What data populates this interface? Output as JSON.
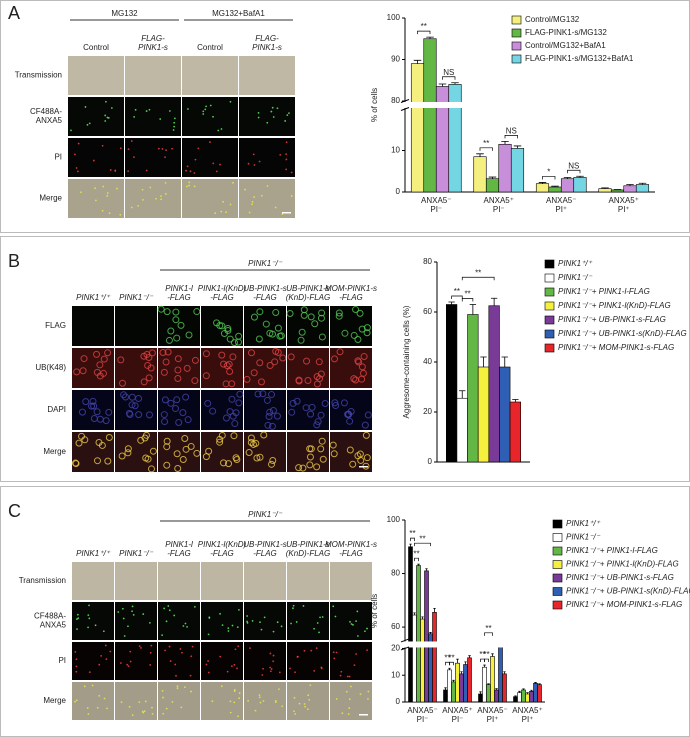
{
  "panels": [
    {
      "label": "A",
      "group_headers": [
        {
          "text": "MG132",
          "columns": [
            0,
            1
          ]
        },
        {
          "text": "MG132+BafA1",
          "columns": [
            2,
            3
          ]
        }
      ],
      "columns": [
        [
          "Control"
        ],
        [
          "FLAG-",
          "PINK1-s"
        ],
        [
          "Control"
        ],
        [
          "FLAG-",
          "PINK1-s"
        ]
      ],
      "rows": [
        [
          "Transmission"
        ],
        [
          "CF488A-",
          "ANXA5"
        ],
        [
          "PI"
        ],
        [
          "Merge"
        ]
      ]
    },
    {
      "label": "B",
      "group_headers": [
        {
          "text": "PINK1⁻/⁻",
          "columns": [
            2,
            6
          ]
        }
      ],
      "columns": [
        [
          "PINK1⁺/⁺"
        ],
        [
          "PINK1⁻/⁻"
        ],
        [
          "PINK1-l",
          "-FLAG"
        ],
        [
          "PINK1-l(KnD)",
          "-FLAG"
        ],
        [
          "UB-PINK1-s",
          "-FLAG"
        ],
        [
          "UB-PINK1-s",
          "(KnD)-FLAG"
        ],
        [
          "MOM-PINK1-s",
          "-FLAG"
        ]
      ],
      "rows": [
        [
          "FLAG"
        ],
        [
          "UB(K48)"
        ],
        [
          "DAPI"
        ],
        [
          "Merge"
        ]
      ]
    },
    {
      "label": "C",
      "group_headers": [
        {
          "text": "PINK1⁻/⁻",
          "columns": [
            2,
            6
          ]
        }
      ],
      "columns": [
        [
          "PINK1⁺/⁺"
        ],
        [
          "PINK1⁻/⁻"
        ],
        [
          "PINK1-l",
          "-FLAG"
        ],
        [
          "PINK1-l(KnD)",
          "-FLAG"
        ],
        [
          "UB-PINK1-s",
          "-FLAG"
        ],
        [
          "UB-PINK1-s",
          "(KnD)-FLAG"
        ],
        [
          "MOM-PINK1-s",
          "-FLAG"
        ]
      ],
      "rows": [
        [
          "Transmission"
        ],
        [
          "CF488A-",
          "ANXA5"
        ],
        [
          "PI"
        ],
        [
          "Merge"
        ]
      ]
    }
  ],
  "chart_data": [
    {
      "type": "bar",
      "y_label": "% of cells",
      "categories": [
        [
          "ANXA5⁻",
          "PI⁻"
        ],
        [
          "ANXA5⁺",
          "PI⁻"
        ],
        [
          "ANXA5⁻",
          "PI⁺"
        ],
        [
          "ANXA5⁺",
          "PI⁺"
        ]
      ],
      "ylim": [
        0,
        100
      ],
      "y_break": [
        20,
        80
      ],
      "yticks": [
        0,
        10,
        80,
        90,
        100
      ],
      "series": [
        {
          "name": "Control/MG132",
          "color": "#f5ef7f",
          "values": [
            89,
            8.5,
            2,
            0.8
          ],
          "errors": [
            0.8,
            0.7,
            0.3,
            0.2
          ]
        },
        {
          "name": "FLAG-PINK1-s/MG132",
          "color": "#63b845",
          "values": [
            95,
            3.2,
            1.2,
            0.5
          ],
          "errors": [
            0.4,
            0.4,
            0.2,
            0.1
          ]
        },
        {
          "name": "Control/MG132+BafA1",
          "color": "#c78fd9",
          "values": [
            83.5,
            11.5,
            3.2,
            1.5
          ],
          "errors": [
            0.6,
            0.7,
            0.3,
            0.3
          ]
        },
        {
          "name": "FLAG-PINK1-s/MG132+BafA1",
          "color": "#74d5e3",
          "values": [
            84,
            10.5,
            3.5,
            1.8
          ],
          "errors": [
            0.4,
            0.6,
            0.3,
            0.3
          ]
        }
      ],
      "significance": [
        {
          "label": "**",
          "group": 0,
          "series": [
            0,
            1
          ]
        },
        {
          "label": "NS",
          "group": 0,
          "series": [
            2,
            3
          ]
        },
        {
          "label": "**",
          "group": 1,
          "series": [
            0,
            1
          ]
        },
        {
          "label": "NS",
          "group": 1,
          "series": [
            2,
            3
          ]
        },
        {
          "label": "*",
          "group": 2,
          "series": [
            0,
            1
          ]
        },
        {
          "label": "NS",
          "group": 2,
          "series": [
            2,
            3
          ]
        }
      ]
    },
    {
      "type": "bar",
      "y_label": "Aggresome-containing cells (%)",
      "ylim": [
        0,
        80
      ],
      "yticks": [
        0,
        20,
        40,
        60,
        80
      ],
      "series": [
        {
          "name": "PINK1⁺/⁺",
          "color": "#000000",
          "values": [
            63
          ],
          "errors": [
            1
          ]
        },
        {
          "name": "PINK1⁻/⁻",
          "color": "#ffffff",
          "values": [
            25.5
          ],
          "errors": [
            3
          ]
        },
        {
          "name": "PINK1⁻/⁻+ PINK1-l-FLAG",
          "color": "#63b845",
          "values": [
            59
          ],
          "errors": [
            4
          ]
        },
        {
          "name": "PINK1⁻/⁻+ PINK1-l(KnD)-FLAG",
          "color": "#f5ef3d",
          "values": [
            38
          ],
          "errors": [
            4
          ]
        },
        {
          "name": "PINK1⁻/⁻+ UB-PINK1-s-FLAG",
          "color": "#7a3a97",
          "values": [
            62.5
          ],
          "errors": [
            3
          ]
        },
        {
          "name": "PINK1⁻/⁻+ UB-PINK1-s(KnD)-FLAG",
          "color": "#2f5fb5",
          "values": [
            38
          ],
          "errors": [
            4
          ]
        },
        {
          "name": "PINK1⁻/⁻+ MOM-PINK1-s-FLAG",
          "color": "#e8252a",
          "values": [
            24
          ],
          "errors": [
            1
          ]
        }
      ],
      "significance": [
        {
          "label": "**",
          "group": 0,
          "series": [
            0,
            1
          ]
        },
        {
          "label": "**",
          "group": 0,
          "series": [
            1,
            2
          ]
        },
        {
          "label": "**",
          "group": 0,
          "series": [
            1,
            4
          ]
        }
      ]
    },
    {
      "type": "bar",
      "y_label": "% of cells",
      "categories": [
        [
          "ANXA5⁻",
          "PI⁻"
        ],
        [
          "ANXA5⁺",
          "PI⁻"
        ],
        [
          "ANXA5⁻",
          "PI⁺"
        ],
        [
          "ANXA5⁺",
          "PI⁺"
        ]
      ],
      "ylim": [
        0,
        100
      ],
      "y_break": [
        20,
        55
      ],
      "yticks": [
        0,
        10,
        20,
        60,
        80,
        100
      ],
      "series": [
        {
          "name": "PINK1⁺/⁺",
          "color": "#000000",
          "values": [
            90,
            4.5,
            3,
            2
          ],
          "errors": [
            1,
            0.8,
            0.8,
            0.3
          ]
        },
        {
          "name": "PINK1⁻/⁻",
          "color": "#ffffff",
          "values": [
            64.5,
            12,
            13,
            3.5
          ],
          "errors": [
            0.8,
            0.6,
            0.8,
            0.5
          ]
        },
        {
          "name": "PINK1⁻/⁻+ PINK1-l-FLAG",
          "color": "#63b845",
          "values": [
            83,
            7.5,
            6.5,
            4.5
          ],
          "errors": [
            0.5,
            0.6,
            0.3,
            0.4
          ]
        },
        {
          "name": "PINK1⁻/⁻+ PINK1-l(KnD)-FLAG",
          "color": "#f5ef3d",
          "values": [
            63,
            14.5,
            17,
            3
          ],
          "errors": [
            0.8,
            1.5,
            1,
            0.5
          ]
        },
        {
          "name": "PINK1⁻/⁻+ UB-PINK1-s-FLAG",
          "color": "#7a3a97",
          "values": [
            81,
            10.5,
            4.5,
            4
          ],
          "errors": [
            0.8,
            0.8,
            0.5,
            0.4
          ]
        },
        {
          "name": "PINK1⁻/⁻+ UB-PINK1-s(KnD)-FLAG",
          "color": "#2f5fb5",
          "values": [
            57.5,
            14,
            20.5,
            7
          ],
          "errors": [
            0.5,
            1,
            1.5,
            0.3
          ]
        },
        {
          "name": "PINK1⁻/⁻+ MOM-PINK1-s-FLAG",
          "color": "#e8252a",
          "values": [
            65.5,
            16.5,
            10.5,
            6.5
          ],
          "errors": [
            1.5,
            0.8,
            0.8,
            0.3
          ]
        }
      ],
      "significance": [
        {
          "label": "**",
          "group": 0,
          "series": [
            0,
            1
          ]
        },
        {
          "label": "**",
          "group": 0,
          "series": [
            1,
            2
          ]
        },
        {
          "label": "**",
          "group": 0,
          "series": [
            1,
            5
          ]
        },
        {
          "label": "**",
          "group": 1,
          "series": [
            0,
            1
          ]
        },
        {
          "label": "**",
          "group": 1,
          "series": [
            1,
            2
          ]
        },
        {
          "label": "**",
          "group": 2,
          "series": [
            0,
            1
          ]
        },
        {
          "label": "**",
          "group": 2,
          "series": [
            1,
            2
          ]
        },
        {
          "label": "**",
          "group": 2,
          "series": [
            1,
            3
          ]
        }
      ]
    }
  ]
}
